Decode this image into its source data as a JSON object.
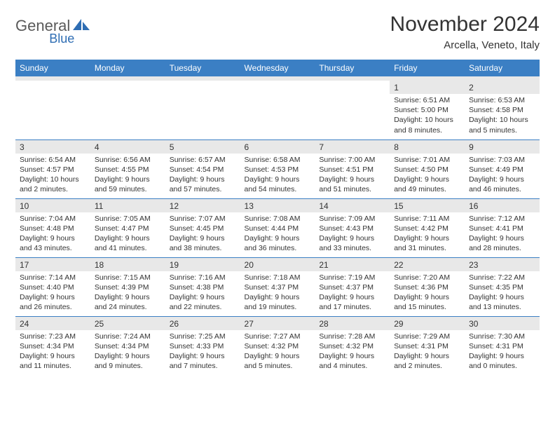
{
  "logo": {
    "part1": "General",
    "part2": "Blue"
  },
  "title": "November 2024",
  "location": "Arcella, Veneto, Italy",
  "colors": {
    "header_bg": "#3b7fc4",
    "header_text": "#ffffff",
    "daynum_bg": "#e8e8e8",
    "border": "#3b7fc4",
    "body_text": "#333333",
    "logo_gray": "#5a5a5a",
    "logo_blue": "#2e6db3"
  },
  "dayHeaders": [
    "Sunday",
    "Monday",
    "Tuesday",
    "Wednesday",
    "Thursday",
    "Friday",
    "Saturday"
  ],
  "weeks": [
    [
      null,
      null,
      null,
      null,
      null,
      {
        "n": "1",
        "sr": "6:51 AM",
        "ss": "5:00 PM",
        "dl": "10 hours and 8 minutes."
      },
      {
        "n": "2",
        "sr": "6:53 AM",
        "ss": "4:58 PM",
        "dl": "10 hours and 5 minutes."
      }
    ],
    [
      {
        "n": "3",
        "sr": "6:54 AM",
        "ss": "4:57 PM",
        "dl": "10 hours and 2 minutes."
      },
      {
        "n": "4",
        "sr": "6:56 AM",
        "ss": "4:55 PM",
        "dl": "9 hours and 59 minutes."
      },
      {
        "n": "5",
        "sr": "6:57 AM",
        "ss": "4:54 PM",
        "dl": "9 hours and 57 minutes."
      },
      {
        "n": "6",
        "sr": "6:58 AM",
        "ss": "4:53 PM",
        "dl": "9 hours and 54 minutes."
      },
      {
        "n": "7",
        "sr": "7:00 AM",
        "ss": "4:51 PM",
        "dl": "9 hours and 51 minutes."
      },
      {
        "n": "8",
        "sr": "7:01 AM",
        "ss": "4:50 PM",
        "dl": "9 hours and 49 minutes."
      },
      {
        "n": "9",
        "sr": "7:03 AM",
        "ss": "4:49 PM",
        "dl": "9 hours and 46 minutes."
      }
    ],
    [
      {
        "n": "10",
        "sr": "7:04 AM",
        "ss": "4:48 PM",
        "dl": "9 hours and 43 minutes."
      },
      {
        "n": "11",
        "sr": "7:05 AM",
        "ss": "4:47 PM",
        "dl": "9 hours and 41 minutes."
      },
      {
        "n": "12",
        "sr": "7:07 AM",
        "ss": "4:45 PM",
        "dl": "9 hours and 38 minutes."
      },
      {
        "n": "13",
        "sr": "7:08 AM",
        "ss": "4:44 PM",
        "dl": "9 hours and 36 minutes."
      },
      {
        "n": "14",
        "sr": "7:09 AM",
        "ss": "4:43 PM",
        "dl": "9 hours and 33 minutes."
      },
      {
        "n": "15",
        "sr": "7:11 AM",
        "ss": "4:42 PM",
        "dl": "9 hours and 31 minutes."
      },
      {
        "n": "16",
        "sr": "7:12 AM",
        "ss": "4:41 PM",
        "dl": "9 hours and 28 minutes."
      }
    ],
    [
      {
        "n": "17",
        "sr": "7:14 AM",
        "ss": "4:40 PM",
        "dl": "9 hours and 26 minutes."
      },
      {
        "n": "18",
        "sr": "7:15 AM",
        "ss": "4:39 PM",
        "dl": "9 hours and 24 minutes."
      },
      {
        "n": "19",
        "sr": "7:16 AM",
        "ss": "4:38 PM",
        "dl": "9 hours and 22 minutes."
      },
      {
        "n": "20",
        "sr": "7:18 AM",
        "ss": "4:37 PM",
        "dl": "9 hours and 19 minutes."
      },
      {
        "n": "21",
        "sr": "7:19 AM",
        "ss": "4:37 PM",
        "dl": "9 hours and 17 minutes."
      },
      {
        "n": "22",
        "sr": "7:20 AM",
        "ss": "4:36 PM",
        "dl": "9 hours and 15 minutes."
      },
      {
        "n": "23",
        "sr": "7:22 AM",
        "ss": "4:35 PM",
        "dl": "9 hours and 13 minutes."
      }
    ],
    [
      {
        "n": "24",
        "sr": "7:23 AM",
        "ss": "4:34 PM",
        "dl": "9 hours and 11 minutes."
      },
      {
        "n": "25",
        "sr": "7:24 AM",
        "ss": "4:34 PM",
        "dl": "9 hours and 9 minutes."
      },
      {
        "n": "26",
        "sr": "7:25 AM",
        "ss": "4:33 PM",
        "dl": "9 hours and 7 minutes."
      },
      {
        "n": "27",
        "sr": "7:27 AM",
        "ss": "4:32 PM",
        "dl": "9 hours and 5 minutes."
      },
      {
        "n": "28",
        "sr": "7:28 AM",
        "ss": "4:32 PM",
        "dl": "9 hours and 4 minutes."
      },
      {
        "n": "29",
        "sr": "7:29 AM",
        "ss": "4:31 PM",
        "dl": "9 hours and 2 minutes."
      },
      {
        "n": "30",
        "sr": "7:30 AM",
        "ss": "4:31 PM",
        "dl": "9 hours and 0 minutes."
      }
    ]
  ],
  "labels": {
    "sunrise": "Sunrise: ",
    "sunset": "Sunset: ",
    "daylight": "Daylight: "
  }
}
